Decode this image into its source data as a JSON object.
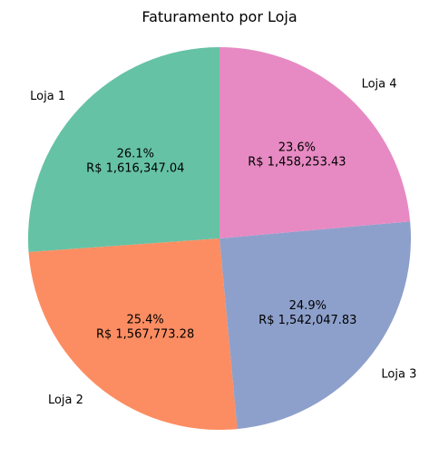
{
  "chart_data": {
    "type": "pie",
    "title": "Faturamento por Loja",
    "categories": [
      "Loja 1",
      "Loja 2",
      "Loja 3",
      "Loja 4"
    ],
    "values": [
      1616347.04,
      1567773.28,
      1542047.83,
      1458253.43
    ],
    "percent_labels": [
      "26.1%",
      "25.4%",
      "24.9%",
      "23.6%"
    ],
    "value_labels": [
      "R$ 1,616,347.04",
      "R$ 1,567,773.28",
      "R$ 1,542,047.83",
      "R$ 1,458,253.43"
    ],
    "colors": [
      "#66c2a5",
      "#fc8d62",
      "#8da0cb",
      "#e78ac3"
    ],
    "start_angle_deg": 90,
    "direction": "counterclockwise",
    "legend": "none"
  }
}
